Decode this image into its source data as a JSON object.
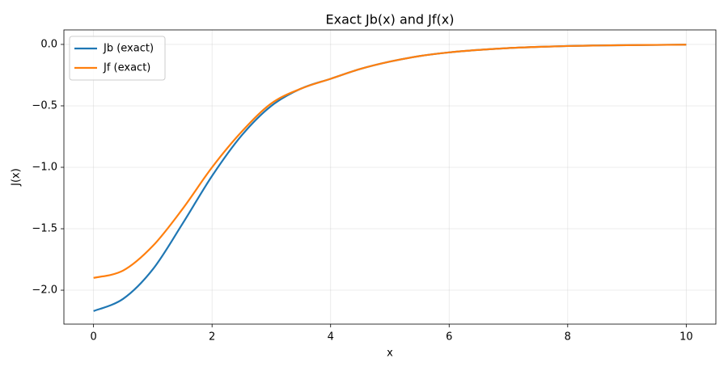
{
  "chart_data": {
    "type": "line",
    "title": "Exact Jb(x) and Jf(x)",
    "xlabel": "x",
    "ylabel": "J(x)",
    "x": [
      0,
      0.5,
      1,
      1.5,
      2,
      2.5,
      3,
      3.5,
      4,
      4.5,
      5,
      5.5,
      6,
      6.5,
      7,
      7.5,
      8,
      8.5,
      9,
      9.5,
      10
    ],
    "series": [
      {
        "name": "Jb (exact)",
        "color": "#1f77b4",
        "values": [
          -2.17,
          -2.07,
          -1.83,
          -1.46,
          -1.07,
          -0.74,
          -0.5,
          -0.36,
          -0.28,
          -0.2,
          -0.14,
          -0.095,
          -0.065,
          -0.045,
          -0.03,
          -0.02,
          -0.013,
          -0.009,
          -0.006,
          -0.004,
          -0.002
        ]
      },
      {
        "name": "Jf (exact)",
        "color": "#ff7f0e",
        "values": [
          -1.9,
          -1.84,
          -1.64,
          -1.34,
          -1.0,
          -0.71,
          -0.48,
          -0.36,
          -0.28,
          -0.2,
          -0.14,
          -0.095,
          -0.065,
          -0.045,
          -0.03,
          -0.02,
          -0.013,
          -0.009,
          -0.006,
          -0.004,
          -0.002
        ]
      }
    ],
    "xlim": [
      -0.5,
      10.5
    ],
    "xticks": [
      0,
      2,
      4,
      6,
      8,
      10
    ],
    "ylim": [
      -2.276,
      0.118
    ],
    "yticks": [
      {
        "value": 0,
        "label": "0.0"
      },
      {
        "value": -0.5,
        "label": "−0.5"
      },
      {
        "value": -1,
        "label": "−1.0"
      },
      {
        "value": -1.5,
        "label": "−1.5"
      },
      {
        "value": -2,
        "label": "−2.0"
      }
    ],
    "grid": true,
    "legend": "upper left"
  }
}
